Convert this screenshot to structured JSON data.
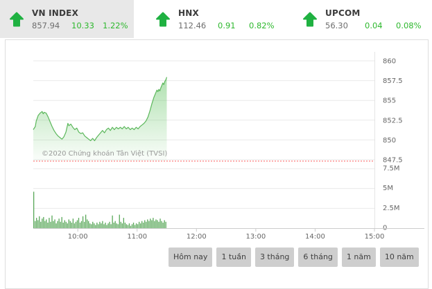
{
  "tabs": [
    {
      "name": "VN INDEX",
      "value": "857.94",
      "change": "10.33",
      "percent": "1.22%",
      "direction": "up",
      "active": true
    },
    {
      "name": "HNX",
      "value": "112.46",
      "change": "0.91",
      "percent": "0.82%",
      "direction": "up",
      "active": false
    },
    {
      "name": "UPCOM",
      "value": "56.30",
      "change": "0.04",
      "percent": "0.08%",
      "direction": "up",
      "active": false
    }
  ],
  "watermark": "©2020 Chứng khoán Tân Việt (TVSI)",
  "range_buttons": [
    {
      "label": "Hôm nay"
    },
    {
      "label": "1 tuần"
    },
    {
      "label": "3 tháng"
    },
    {
      "label": "6 tháng"
    },
    {
      "label": "1 năm"
    },
    {
      "label": "10 năm"
    }
  ],
  "colors": {
    "arrow_green": "#1fb141",
    "text_green": "#2eb82e",
    "value_gray": "#6e6e6e",
    "price_line": "#5bb75b",
    "area_fill": "#6ec86e",
    "volume_bar": "#58a758",
    "ref_line_red": "#ff5b5b",
    "grid": "#e9e9e9",
    "axis": "#cccccc",
    "axis_label": "#666666",
    "active_tab_bg": "#e8e8e8"
  },
  "chart_data": [
    {
      "type": "area",
      "title": "VN-Index intraday price",
      "x_range": [
        "09:15",
        "15:00"
      ],
      "x_data_range": [
        "09:15",
        "11:30"
      ],
      "x_ticks": [
        "10:00",
        "11:00",
        "12:00",
        "13:00",
        "14:00",
        "15:00"
      ],
      "y_ticks": [
        860,
        857.5,
        855,
        852.5,
        850,
        847.5
      ],
      "ylim": [
        847.3,
        861.2
      ],
      "ref_line_value": 847.61,
      "grid": true,
      "points": [
        [
          0,
          851.3
        ],
        [
          2,
          851.7
        ],
        [
          3,
          852.4
        ],
        [
          5,
          853.1
        ],
        [
          7,
          853.4
        ],
        [
          9,
          853.6
        ],
        [
          10,
          853.3
        ],
        [
          11,
          853.5
        ],
        [
          13,
          853.4
        ],
        [
          15,
          852.9
        ],
        [
          17,
          852.3
        ],
        [
          19,
          851.7
        ],
        [
          21,
          851.2
        ],
        [
          23,
          850.8
        ],
        [
          25,
          850.5
        ],
        [
          27,
          850.3
        ],
        [
          29,
          850.1
        ],
        [
          31,
          850.4
        ],
        [
          33,
          851.0
        ],
        [
          35,
          852.1
        ],
        [
          36,
          851.8
        ],
        [
          38,
          852.0
        ],
        [
          40,
          851.6
        ],
        [
          42,
          851.3
        ],
        [
          44,
          851.5
        ],
        [
          46,
          851.0
        ],
        [
          48,
          850.8
        ],
        [
          50,
          850.9
        ],
        [
          52,
          850.5
        ],
        [
          54,
          850.3
        ],
        [
          56,
          850.1
        ],
        [
          58,
          849.9
        ],
        [
          60,
          850.2
        ],
        [
          62,
          849.9
        ],
        [
          64,
          850.3
        ],
        [
          66,
          850.6
        ],
        [
          68,
          850.9
        ],
        [
          70,
          851.2
        ],
        [
          72,
          850.9
        ],
        [
          74,
          851.3
        ],
        [
          76,
          851.5
        ],
        [
          78,
          851.2
        ],
        [
          80,
          851.6
        ],
        [
          82,
          851.3
        ],
        [
          84,
          851.6
        ],
        [
          86,
          851.4
        ],
        [
          88,
          851.6
        ],
        [
          90,
          851.4
        ],
        [
          92,
          851.7
        ],
        [
          94,
          851.4
        ],
        [
          96,
          851.6
        ],
        [
          98,
          851.3
        ],
        [
          100,
          851.5
        ],
        [
          102,
          851.3
        ],
        [
          104,
          851.6
        ],
        [
          106,
          851.4
        ],
        [
          108,
          851.7
        ],
        [
          110,
          851.9
        ],
        [
          112,
          852.1
        ],
        [
          114,
          852.4
        ],
        [
          116,
          852.9
        ],
        [
          118,
          853.7
        ],
        [
          120,
          854.6
        ],
        [
          122,
          855.4
        ],
        [
          124,
          856.0
        ],
        [
          125,
          856.3
        ],
        [
          126,
          856.1
        ],
        [
          127,
          856.4
        ],
        [
          128,
          856.2
        ],
        [
          129,
          856.6
        ],
        [
          130,
          856.9
        ],
        [
          131,
          857.2
        ],
        [
          132,
          857.0
        ],
        [
          133,
          857.4
        ],
        [
          134,
          857.6
        ],
        [
          135,
          857.94
        ]
      ],
      "points_x_unit": "minutes after 09:15"
    },
    {
      "type": "bar",
      "title": "Trading volume",
      "y_tick_labels": [
        "7.5M",
        "5M",
        "2.5M",
        "0"
      ],
      "y_ticks_M": [
        7.5,
        5,
        2.5,
        0
      ],
      "ylim_M": [
        0,
        7.5
      ],
      "values_M": [
        4.6,
        0.9,
        1.3,
        1.0,
        1.5,
        0.8,
        1.2,
        1.4,
        0.9,
        1.1,
        0.7,
        1.3,
        0.8,
        1.6,
        0.9,
        1.1,
        0.6,
        0.9,
        1.2,
        0.8,
        1.4,
        0.7,
        1.0,
        0.8,
        0.6,
        1.1,
        0.9,
        0.7,
        1.2,
        0.6,
        0.8,
        1.0,
        1.3,
        0.7,
        0.9,
        1.5,
        0.8,
        1.7,
        1.1,
        0.9,
        0.6,
        0.5,
        0.8,
        0.6,
        0.4,
        0.7,
        0.5,
        0.8,
        0.6,
        0.9,
        0.5,
        0.7,
        0.4,
        0.6,
        0.8,
        0.5,
        1.6,
        0.7,
        0.9,
        0.6,
        0.5,
        1.7,
        0.8,
        0.6,
        1.3,
        0.7,
        0.5,
        0.4,
        0.6,
        0.3,
        0.5,
        0.7,
        0.4,
        0.6,
        0.5,
        0.8,
        0.6,
        0.9,
        0.7,
        1.0,
        0.8,
        1.1,
        0.9,
        1.2,
        1.0,
        1.3,
        0.9,
        1.1,
        1.0,
        0.8,
        1.2,
        0.9,
        0.7,
        1.0,
        0.8
      ]
    }
  ]
}
